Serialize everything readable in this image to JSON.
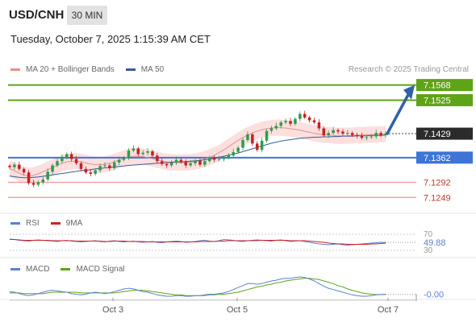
{
  "header": {
    "symbol": "USD/CNH",
    "timeframe": "30 MIN",
    "datetime": "Tuesday, October 7, 2025 1:15:39 AM CET"
  },
  "credit": "Research © 2025 Trading Central",
  "colors": {
    "green_level": "#5fa317",
    "blue_level": "#3e74d6",
    "red_level": "#f1a4a4",
    "current_tag": "#2b2b2b",
    "arrow": "#2f60a8",
    "ma20": "#e89090",
    "bands_fill": "#fbd9d9",
    "ma50": "#3a5a9a",
    "candle_up": "#2e9b4a",
    "candle_down": "#c92020",
    "rsi": "#5b80d0",
    "rsi_ma": "#d02020",
    "macd": "#5b80d0",
    "macd_signal": "#5fa317"
  },
  "chart_data": [
    {
      "type": "candlestick",
      "title": "USD/CNH 30 MIN",
      "legend": [
        {
          "name": "MA 20 + Bollinger Bands",
          "color": "#e89090"
        },
        {
          "name": "MA 50",
          "color": "#3a5a9a"
        }
      ],
      "y_range": [
        7.122,
        7.159
      ],
      "x_ticks": [
        "Oct 3",
        "Oct 5",
        "Oct 7"
      ],
      "current_price": "7.1429",
      "levels": [
        {
          "label": "7.1568",
          "value": 7.1568,
          "style": "green-tag"
        },
        {
          "label": "7.1525",
          "value": 7.1525,
          "style": "green-tag"
        },
        {
          "label": "7.1362",
          "value": 7.1362,
          "style": "blue-tag"
        },
        {
          "label": "7.1292",
          "value": 7.1292,
          "style": "red-text"
        },
        {
          "label": "7.1249",
          "value": 7.1249,
          "style": "red-text"
        }
      ],
      "arrow_target": 7.1568,
      "close_series": [
        7.1335,
        7.1342,
        7.133,
        7.132,
        7.129,
        7.1285,
        7.1292,
        7.13,
        7.1322,
        7.134,
        7.1352,
        7.1362,
        7.1372,
        7.1358,
        7.1346,
        7.133,
        7.132,
        7.1316,
        7.1326,
        7.1338,
        7.134,
        7.1332,
        7.1348,
        7.1356,
        7.1362,
        7.1382,
        7.1388,
        7.1372,
        7.1376,
        7.138,
        7.1368,
        7.1352,
        7.1344,
        7.134,
        7.1348,
        7.1356,
        7.135,
        7.134,
        7.1346,
        7.1354,
        7.1342,
        7.1352,
        7.1362,
        7.1356,
        7.1358,
        7.1362,
        7.1368,
        7.1378,
        7.139,
        7.1412,
        7.1428,
        7.1402,
        7.1384,
        7.141,
        7.1438,
        7.1445,
        7.1452,
        7.1462,
        7.1466,
        7.1458,
        7.1472,
        7.1486,
        7.1476,
        7.1468,
        7.1462,
        7.1445,
        7.1425,
        7.1432,
        7.144,
        7.1436,
        7.143,
        7.1432,
        7.1426,
        7.1424,
        7.1418,
        7.142,
        7.1422,
        7.1432,
        7.1426,
        7.143
      ],
      "ma20_series": [
        7.133,
        7.1325,
        7.1318,
        7.1312,
        7.131,
        7.1312,
        7.1316,
        7.1322,
        7.1328,
        7.1334,
        7.134,
        7.1346,
        7.135,
        7.1352,
        7.1352,
        7.135,
        7.1347,
        7.1344,
        7.1342,
        7.1342,
        7.1343,
        7.1346,
        7.135,
        7.1355,
        7.136,
        7.1364,
        7.1366,
        7.1366,
        7.1365,
        7.1362,
        7.1359,
        7.1356,
        7.1353,
        7.135,
        7.1349,
        7.1348,
        7.1348,
        7.1348,
        7.1349,
        7.1351,
        7.1354,
        7.1358,
        7.1363,
        7.1369,
        7.1376,
        7.1384,
        7.1393,
        7.1402,
        7.1411,
        7.1419,
        7.1426,
        7.1432,
        7.1437,
        7.1441,
        7.1444,
        7.1446,
        7.1447,
        7.1447,
        7.1446,
        7.1444,
        7.1442,
        7.144,
        7.1437,
        7.1434,
        7.1431,
        7.1429,
        7.1427,
        7.1426,
        7.1425,
        7.1424,
        7.1424,
        7.1424,
        7.1425,
        7.1426,
        7.1426,
        7.1427,
        7.1427,
        7.1428,
        7.1428,
        7.1429
      ],
      "ma50_series": [
        7.131,
        7.1308,
        7.1306,
        7.1305,
        7.1305,
        7.1306,
        7.1307,
        7.1309,
        7.1311,
        7.1313,
        7.1315,
        7.1317,
        7.1319,
        7.1321,
        7.1323,
        7.1325,
        7.1326,
        7.1328,
        7.133,
        7.1331,
        7.1333,
        7.1334,
        7.1336,
        7.1337,
        7.1338,
        7.134,
        7.1341,
        7.1342,
        7.1343,
        7.1344,
        7.1345,
        7.1346,
        7.1347,
        7.1348,
        7.1349,
        7.135,
        7.135,
        7.1351,
        7.1352,
        7.1353,
        7.1354,
        7.1356,
        7.1358,
        7.136,
        7.1363,
        7.1366,
        7.1369,
        7.1372,
        7.1375,
        7.1379,
        7.1383,
        7.1387,
        7.1391,
        7.1395,
        7.1399,
        7.1403,
        7.1406,
        7.1409,
        7.1411,
        7.1413,
        7.1415,
        7.1417,
        7.1418,
        7.1419,
        7.142,
        7.142,
        7.1421,
        7.1421,
        7.1422,
        7.1422,
        7.1423,
        7.1423,
        7.1423,
        7.1424,
        7.1424,
        7.1424,
        7.1425,
        7.1425,
        7.1425,
        7.1426
      ],
      "band_halfwidth": 0.0023
    },
    {
      "type": "line",
      "title": "RSI",
      "series": [
        {
          "name": "RSI",
          "color": "#5b80d0"
        },
        {
          "name": "9MA",
          "color": "#d02020"
        }
      ],
      "y_range": [
        20,
        80
      ],
      "reference_lines": [
        70,
        30
      ],
      "reference_labels": [
        "70",
        "30"
      ],
      "current_value": "49.88",
      "rsi_values": [
        58,
        57,
        55,
        54,
        53,
        55,
        56,
        55,
        54,
        53,
        52,
        54,
        55,
        53,
        52,
        51,
        52,
        53,
        54,
        52,
        51,
        53,
        54,
        52,
        51,
        52,
        53,
        51,
        50,
        51,
        52,
        50,
        49,
        51,
        52,
        53,
        52,
        50,
        51,
        52,
        54,
        55,
        53,
        52,
        54,
        57,
        56,
        55,
        53,
        52,
        54,
        55,
        56,
        55,
        54,
        53,
        55,
        56,
        54,
        52,
        53,
        54,
        52,
        50,
        48,
        46,
        45,
        44,
        45,
        46,
        44,
        43,
        44,
        45,
        46,
        47,
        48,
        49,
        50,
        49.88
      ],
      "rsi_ma_values": [
        57,
        57,
        56,
        55,
        55,
        55,
        55,
        55,
        55,
        54,
        54,
        54,
        54,
        54,
        53,
        53,
        53,
        53,
        53,
        53,
        52,
        52,
        53,
        53,
        53,
        52,
        52,
        52,
        52,
        51,
        51,
        51,
        51,
        51,
        51,
        51,
        51,
        51,
        51,
        51,
        52,
        52,
        52,
        52,
        53,
        53,
        54,
        54,
        54,
        54,
        54,
        54,
        54,
        55,
        55,
        55,
        55,
        55,
        55,
        54,
        54,
        54,
        54,
        53,
        52,
        51,
        50,
        48,
        47,
        46,
        46,
        45,
        45,
        45,
        45,
        45,
        46,
        46,
        47,
        48
      ]
    },
    {
      "type": "line",
      "title": "MACD",
      "series": [
        {
          "name": "MACD",
          "color": "#5b80d0"
        },
        {
          "name": "MACD Signal",
          "color": "#5fa317"
        }
      ],
      "current_value": "-0.00",
      "macd_values": [
        0.4,
        0.3,
        0.1,
        -0.1,
        -0.2,
        -0.1,
        0.1,
        0.3,
        0.5,
        0.6,
        0.5,
        0.4,
        0.3,
        0.1,
        0.0,
        -0.1,
        0.0,
        0.2,
        0.3,
        0.2,
        0.1,
        0.2,
        0.4,
        0.6,
        0.8,
        0.9,
        0.8,
        0.6,
        0.4,
        0.3,
        0.1,
        -0.1,
        -0.2,
        -0.3,
        -0.3,
        -0.2,
        -0.2,
        -0.3,
        -0.3,
        -0.2,
        -0.2,
        -0.1,
        0.0,
        0.0,
        0.1,
        0.2,
        0.4,
        0.7,
        1.0,
        1.3,
        1.6,
        1.6,
        1.5,
        1.6,
        1.8,
        2.0,
        2.1,
        2.3,
        2.4,
        2.4,
        2.5,
        2.6,
        2.5,
        2.3,
        2.0,
        1.6,
        1.2,
        0.9,
        0.7,
        0.5,
        0.3,
        0.1,
        -0.1,
        -0.2,
        -0.3,
        -0.3,
        -0.2,
        -0.1,
        -0.05,
        0.0
      ],
      "signal_values": [
        0.2,
        0.2,
        0.2,
        0.1,
        0.1,
        0.1,
        0.1,
        0.1,
        0.2,
        0.3,
        0.3,
        0.3,
        0.3,
        0.3,
        0.3,
        0.2,
        0.2,
        0.2,
        0.2,
        0.2,
        0.2,
        0.2,
        0.2,
        0.3,
        0.4,
        0.5,
        0.6,
        0.6,
        0.6,
        0.5,
        0.4,
        0.3,
        0.2,
        0.1,
        0.0,
        -0.1,
        -0.1,
        -0.2,
        -0.2,
        -0.2,
        -0.2,
        -0.2,
        -0.1,
        -0.1,
        0.0,
        0.0,
        0.1,
        0.2,
        0.3,
        0.5,
        0.7,
        0.9,
        1.1,
        1.2,
        1.4,
        1.5,
        1.7,
        1.8,
        2.0,
        2.1,
        2.2,
        2.3,
        2.4,
        2.4,
        2.3,
        2.2,
        2.0,
        1.8,
        1.6,
        1.3,
        1.1,
        0.8,
        0.6,
        0.4,
        0.2,
        0.1,
        0.0,
        -0.05,
        -0.05,
        -0.03
      ]
    }
  ]
}
